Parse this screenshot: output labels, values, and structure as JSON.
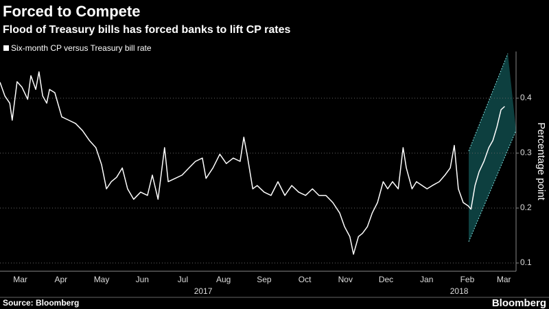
{
  "chart_data": {
    "type": "line",
    "title": "Forced to Compete",
    "subtitle": "Flood of Treasury bills has forced banks to lift CP rates",
    "y_label": "Percentage point",
    "source": "Source: Bloomberg",
    "brand": "Bloomberg",
    "xlim": [
      0,
      12.7
    ],
    "ylim": [
      0.085,
      0.485
    ],
    "yticks": [
      0.1,
      0.2,
      0.3,
      0.4
    ],
    "grid": true,
    "xticks": [
      {
        "value": 0.5,
        "label": "Mar"
      },
      {
        "value": 1.5,
        "label": "Apr"
      },
      {
        "value": 2.5,
        "label": "May"
      },
      {
        "value": 3.5,
        "label": "Jun"
      },
      {
        "value": 4.5,
        "label": "Jul"
      },
      {
        "value": 5.5,
        "label": "Aug"
      },
      {
        "value": 6.5,
        "label": "Sep"
      },
      {
        "value": 7.5,
        "label": "Oct"
      },
      {
        "value": 8.5,
        "label": "Nov"
      },
      {
        "value": 9.5,
        "label": "Dec"
      },
      {
        "value": 10.5,
        "label": "Jan"
      },
      {
        "value": 11.5,
        "label": "Feb"
      },
      {
        "value": 12.4,
        "label": "Mar"
      }
    ],
    "year_ticks": [
      {
        "value": 5,
        "label": "2017"
      },
      {
        "value": 11.3,
        "label": "2018"
      }
    ],
    "x": [
      0,
      0.12,
      0.24,
      0.3,
      0.42,
      0.54,
      0.68,
      0.76,
      0.88,
      0.96,
      1.05,
      1.15,
      1.22,
      1.35,
      1.52,
      1.69,
      1.86,
      2.03,
      2.2,
      2.36,
      2.5,
      2.62,
      2.74,
      2.87,
      3.01,
      3.14,
      3.29,
      3.46,
      3.63,
      3.75,
      3.89,
      4.05,
      4.14,
      4.31,
      4.48,
      4.65,
      4.81,
      4.98,
      5.07,
      5.24,
      5.41,
      5.57,
      5.74,
      5.91,
      6.0,
      6.08,
      6.22,
      6.33,
      6.5,
      6.67,
      6.84,
      7.01,
      7.18,
      7.35,
      7.52,
      7.69,
      7.85,
      8.02,
      8.19,
      8.36,
      8.48,
      8.61,
      8.7,
      8.82,
      8.92,
      9.04,
      9.16,
      9.29,
      9.43,
      9.54,
      9.66,
      9.8,
      9.92,
      10.0,
      10.14,
      10.25,
      10.39,
      10.51,
      10.64,
      10.81,
      10.95,
      11.08,
      11.18,
      11.28,
      11.4,
      11.52,
      11.59,
      11.69,
      11.79,
      11.91,
      12.03,
      12.13,
      12.23,
      12.33,
      12.42
    ],
    "series": [
      {
        "name": "Six-month CP versus Treasury bill rate",
        "color": "#ffffff",
        "values": [
          0.429,
          0.404,
          0.391,
          0.36,
          0.43,
          0.42,
          0.398,
          0.441,
          0.416,
          0.448,
          0.404,
          0.391,
          0.416,
          0.41,
          0.366,
          0.36,
          0.354,
          0.341,
          0.323,
          0.31,
          0.279,
          0.235,
          0.248,
          0.256,
          0.273,
          0.235,
          0.216,
          0.229,
          0.223,
          0.26,
          0.216,
          0.31,
          0.248,
          0.254,
          0.26,
          0.273,
          0.285,
          0.291,
          0.254,
          0.273,
          0.298,
          0.281,
          0.291,
          0.285,
          0.329,
          0.298,
          0.235,
          0.241,
          0.229,
          0.223,
          0.248,
          0.223,
          0.241,
          0.229,
          0.223,
          0.235,
          0.223,
          0.223,
          0.21,
          0.191,
          0.166,
          0.148,
          0.116,
          0.148,
          0.154,
          0.166,
          0.191,
          0.21,
          0.248,
          0.235,
          0.248,
          0.235,
          0.31,
          0.273,
          0.235,
          0.248,
          0.241,
          0.235,
          0.241,
          0.248,
          0.26,
          0.273,
          0.314,
          0.235,
          0.21,
          0.204,
          0.198,
          0.241,
          0.266,
          0.285,
          0.31,
          0.323,
          0.348,
          0.379,
          0.385
        ]
      }
    ]
  }
}
